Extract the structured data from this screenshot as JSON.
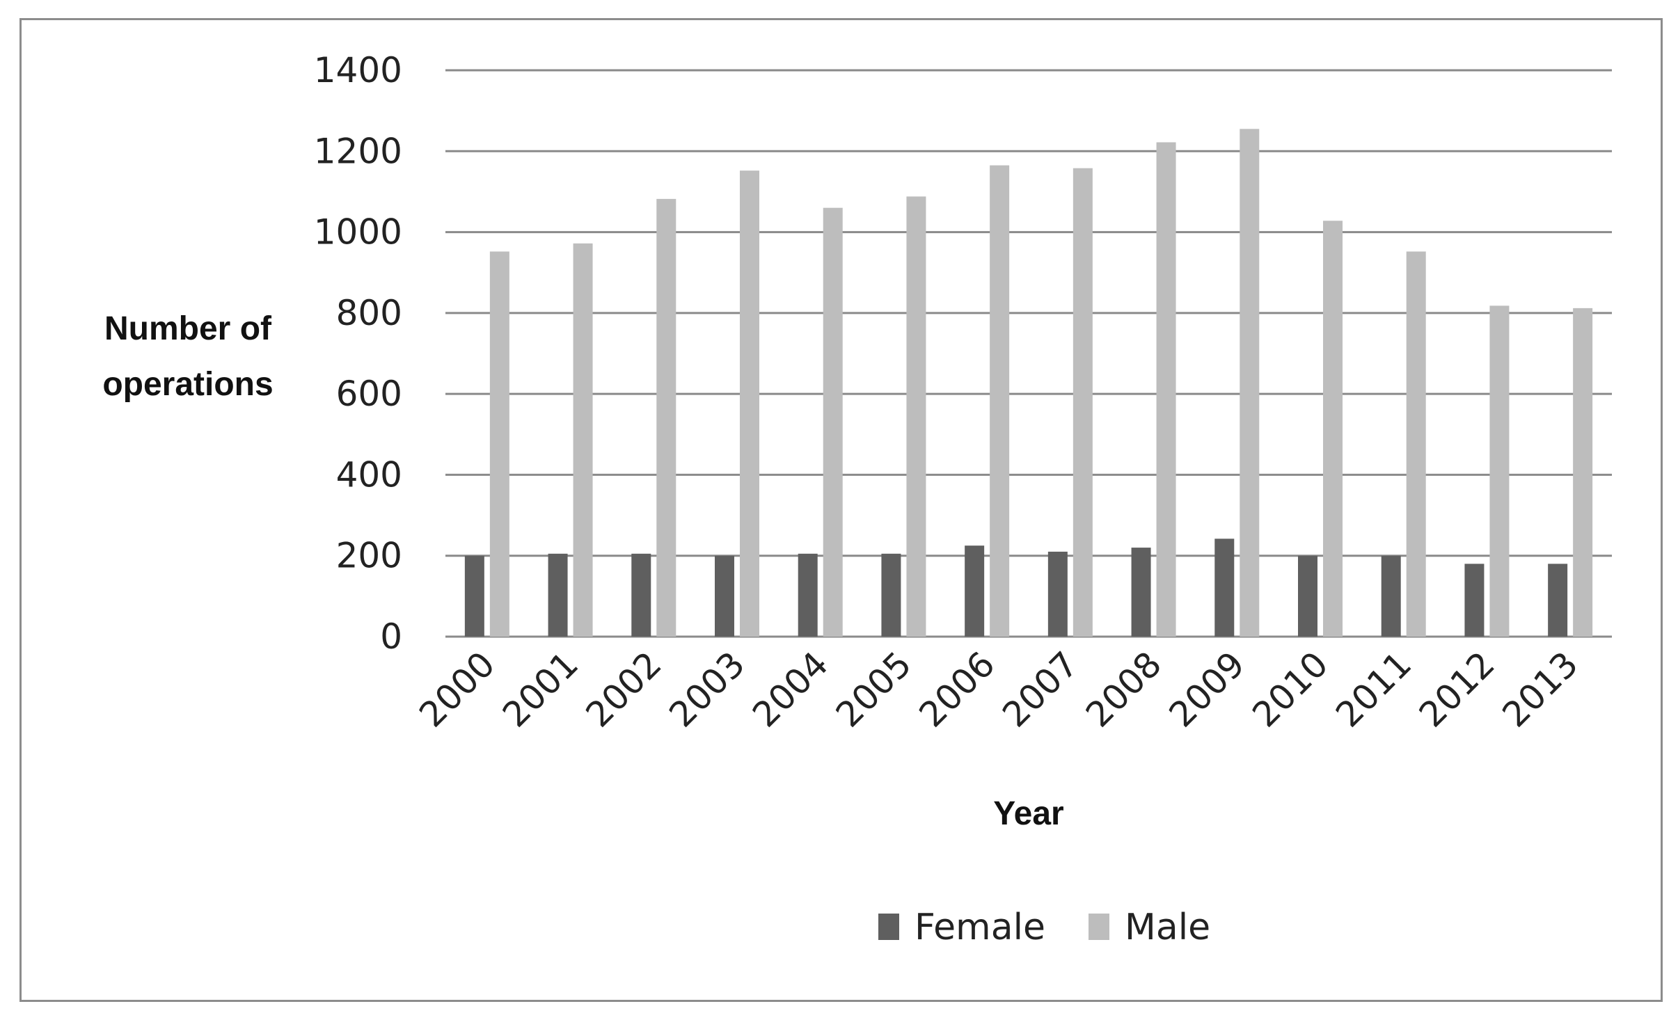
{
  "chart_data": {
    "type": "bar",
    "categories": [
      "2000",
      "2001",
      "2002",
      "2003",
      "2004",
      "2005",
      "2006",
      "2007",
      "2008",
      "2009",
      "2010",
      "2011",
      "2012",
      "2013"
    ],
    "series": [
      {
        "name": "Female",
        "color": "#5f5f5f",
        "values": [
          200,
          205,
          205,
          200,
          205,
          205,
          225,
          210,
          220,
          242,
          200,
          200,
          180,
          180
        ]
      },
      {
        "name": "Male",
        "color": "#bdbdbd",
        "values": [
          952,
          972,
          1082,
          1152,
          1060,
          1088,
          1165,
          1158,
          1222,
          1255,
          1028,
          952,
          818,
          812
        ]
      }
    ],
    "xlabel": "Year",
    "ylabel": "Number of operations",
    "ylim": [
      0,
      1400
    ],
    "yticks": [
      0,
      200,
      400,
      600,
      800,
      1000,
      1200,
      1400
    ],
    "grid": true,
    "legend_position": "bottom"
  }
}
